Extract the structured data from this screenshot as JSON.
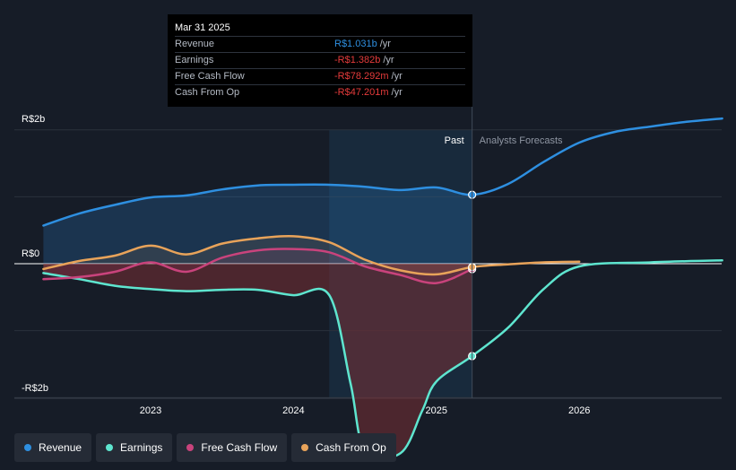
{
  "tooltip": {
    "date": "Mar 31 2025",
    "rows": [
      {
        "label": "Revenue",
        "value": "R$1.031b",
        "unit": "/yr",
        "color": "#2e8fe0"
      },
      {
        "label": "Earnings",
        "value": "-R$1.382b",
        "unit": "/yr",
        "color": "#e53b3b"
      },
      {
        "label": "Free Cash Flow",
        "value": "-R$78.292m",
        "unit": "/yr",
        "color": "#e53b3b"
      },
      {
        "label": "Cash From Op",
        "value": "-R$47.201m",
        "unit": "/yr",
        "color": "#e53b3b"
      }
    ]
  },
  "legend": [
    {
      "label": "Revenue",
      "color": "#2e8fe0"
    },
    {
      "label": "Earnings",
      "color": "#5ee5cf"
    },
    {
      "label": "Free Cash Flow",
      "color": "#c9437c"
    },
    {
      "label": "Cash From Op",
      "color": "#e8a35a"
    }
  ],
  "chart_data": {
    "type": "line",
    "y_unit": "R$ billions",
    "ylim": [
      -2,
      2
    ],
    "y_ticks": [
      "R$2b",
      "R$0",
      "-R$2b"
    ],
    "x_ticks": [
      "2023",
      "2024",
      "2025",
      "2026"
    ],
    "past_label": "Past",
    "forecast_label": "Analysts Forecasts",
    "past_region": [
      2024.25,
      2025.25
    ],
    "forecast_start": 2025.25,
    "colors": {
      "Revenue": "#2e8fe0",
      "Earnings": "#5ee5cf",
      "Free Cash Flow": "#c9437c",
      "Cash From Op": "#e8a35a"
    },
    "series": [
      {
        "name": "Revenue",
        "x": [
          2022.25,
          2022.5,
          2022.75,
          2023.0,
          2023.25,
          2023.5,
          2023.75,
          2024.0,
          2024.25,
          2024.5,
          2024.75,
          2025.0,
          2025.25,
          2025.5,
          2025.75,
          2026.0,
          2026.25,
          2026.5,
          2026.75,
          2027.0
        ],
        "y": [
          0.57,
          0.75,
          0.88,
          0.99,
          1.02,
          1.11,
          1.17,
          1.18,
          1.18,
          1.15,
          1.1,
          1.14,
          1.03,
          1.19,
          1.52,
          1.81,
          1.97,
          2.05,
          2.12,
          2.17
        ]
      },
      {
        "name": "Earnings",
        "x": [
          2022.25,
          2022.5,
          2022.75,
          2023.0,
          2023.25,
          2023.5,
          2023.75,
          2024.0,
          2024.25,
          2024.4,
          2024.5,
          2024.75,
          2024.9,
          2025.0,
          2025.25,
          2025.5,
          2025.75,
          2026.0,
          2026.5,
          2027.0
        ],
        "y": [
          -0.14,
          -0.23,
          -0.33,
          -0.38,
          -0.41,
          -0.39,
          -0.39,
          -0.47,
          -0.47,
          -1.8,
          -2.79,
          -2.83,
          -2.2,
          -1.76,
          -1.38,
          -0.96,
          -0.38,
          -0.04,
          0.02,
          0.05
        ]
      },
      {
        "name": "Free Cash Flow",
        "x": [
          2022.25,
          2022.5,
          2022.75,
          2023.0,
          2023.25,
          2023.5,
          2023.75,
          2024.0,
          2024.25,
          2024.5,
          2024.75,
          2025.0,
          2025.25
        ],
        "y": [
          -0.23,
          -0.2,
          -0.12,
          0.02,
          -0.12,
          0.09,
          0.2,
          0.22,
          0.17,
          -0.04,
          -0.17,
          -0.29,
          -0.08
        ]
      },
      {
        "name": "Cash From Op",
        "x": [
          2022.25,
          2022.5,
          2022.75,
          2023.0,
          2023.25,
          2023.5,
          2023.75,
          2024.0,
          2024.25,
          2024.5,
          2024.75,
          2025.0,
          2025.25,
          2025.5,
          2025.75,
          2026.0
        ],
        "y": [
          -0.08,
          0.04,
          0.12,
          0.27,
          0.14,
          0.3,
          0.38,
          0.41,
          0.32,
          0.06,
          -0.1,
          -0.16,
          -0.05,
          -0.01,
          0.02,
          0.03
        ]
      }
    ]
  }
}
